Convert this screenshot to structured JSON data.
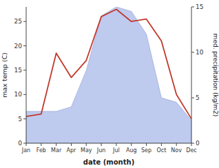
{
  "chart_data": {
    "type": "line",
    "xlabel": "date (month)",
    "ylabel": "max temp (C)",
    "y2label": "med. precipitation (kg/m2)",
    "categories": [
      "Jan",
      "Feb",
      "Mar",
      "Apr",
      "May",
      "Jun",
      "Jul",
      "Aug",
      "Sep",
      "Oct",
      "Nov",
      "Dec"
    ],
    "series": [
      {
        "type": "area",
        "axis": "y2",
        "color": "#b8c4ed",
        "values": [
          3.5,
          3.5,
          3.5,
          4.0,
          8.0,
          14.0,
          15.0,
          14.5,
          12.0,
          5.0,
          4.5,
          2.5
        ]
      },
      {
        "type": "line",
        "color": "#c0392b",
        "values": [
          5.5,
          6.0,
          18.5,
          13.5,
          17.0,
          26.0,
          27.5,
          25.0,
          25.5,
          21.0,
          10.0,
          5.0
        ]
      }
    ],
    "ylim": [
      0,
      28
    ],
    "yticks": [
      0,
      5,
      10,
      15,
      20,
      25
    ],
    "y2lim": [
      0,
      15
    ],
    "y2ticks": [
      0,
      5,
      10,
      15
    ]
  }
}
